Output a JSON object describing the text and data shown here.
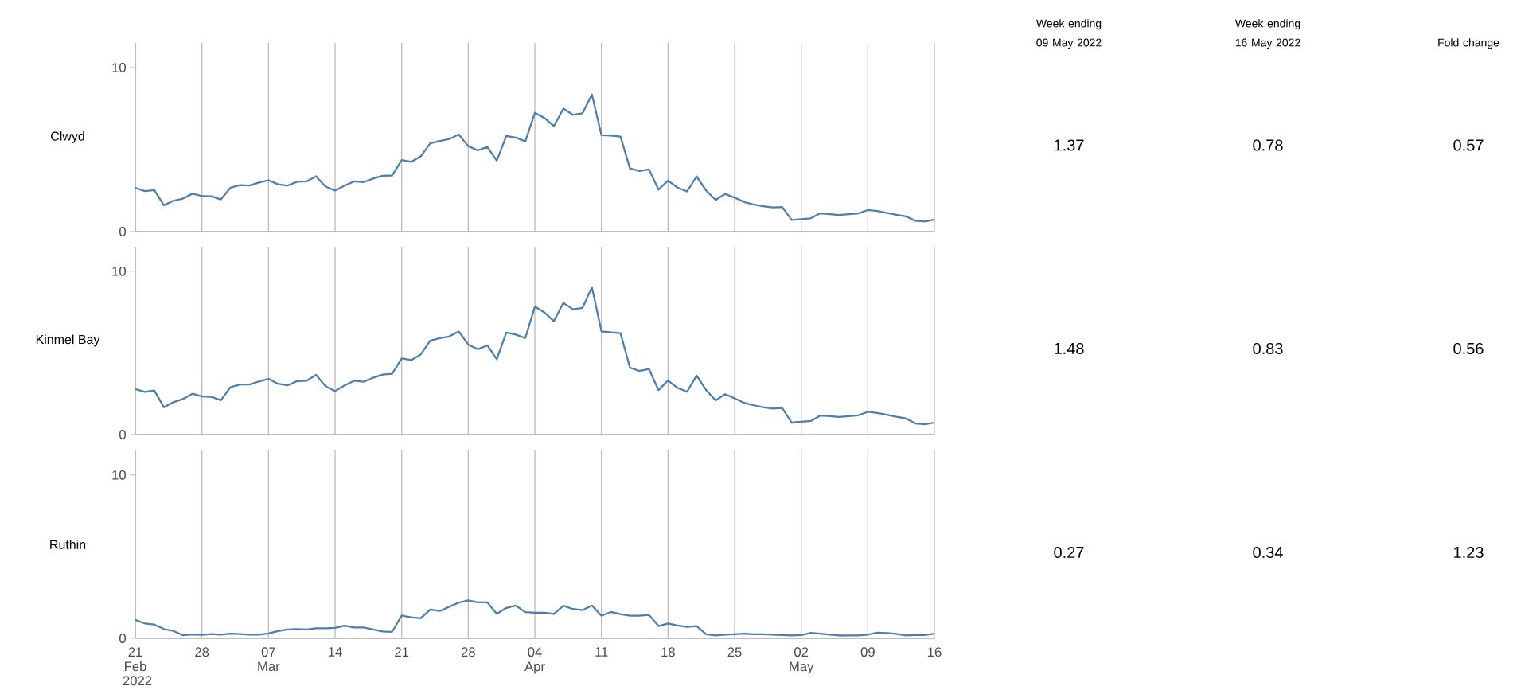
{
  "chart_data": [
    {
      "type": "line",
      "ylabel": "Clwyd",
      "color": "#4e7eab",
      "xlim": [
        "2022-02-21",
        "2022-05-16"
      ],
      "ylim": [
        0,
        11.5
      ],
      "yticks": [
        0,
        10
      ],
      "grid": "x",
      "tick_labels": "y",
      "xticks": [
        {
          "value": "2022-02-21",
          "label": null
        },
        {
          "value": "2022-02-28",
          "label": null
        },
        {
          "value": "2022-03-07",
          "label": null
        },
        {
          "value": "2022-03-14",
          "label": null
        },
        {
          "value": "2022-03-21",
          "label": null
        },
        {
          "value": "2022-03-28",
          "label": null
        },
        {
          "value": "2022-04-04",
          "label": null
        },
        {
          "value": "2022-04-11",
          "label": null
        },
        {
          "value": "2022-04-18",
          "label": null
        },
        {
          "value": "2022-04-25",
          "label": null
        },
        {
          "value": "2022-05-02",
          "label": null
        },
        {
          "value": "2022-05-09",
          "label": null
        },
        {
          "value": "2022-05-16",
          "label": null
        }
      ],
      "x": [
        "2022-02-21",
        "2022-02-22",
        "2022-02-23",
        "2022-02-24",
        "2022-02-25",
        "2022-02-26",
        "2022-02-27",
        "2022-02-28",
        "2022-03-01",
        "2022-03-02",
        "2022-03-03",
        "2022-03-04",
        "2022-03-05",
        "2022-03-06",
        "2022-03-07",
        "2022-03-08",
        "2022-03-09",
        "2022-03-10",
        "2022-03-11",
        "2022-03-12",
        "2022-03-13",
        "2022-03-14",
        "2022-03-15",
        "2022-03-16",
        "2022-03-17",
        "2022-03-18",
        "2022-03-19",
        "2022-03-20",
        "2022-03-21",
        "2022-03-22",
        "2022-03-23",
        "2022-03-24",
        "2022-03-25",
        "2022-03-26",
        "2022-03-27",
        "2022-03-28",
        "2022-03-29",
        "2022-03-30",
        "2022-03-31",
        "2022-04-01",
        "2022-04-02",
        "2022-04-03",
        "2022-04-04",
        "2022-04-05",
        "2022-04-06",
        "2022-04-07",
        "2022-04-08",
        "2022-04-09",
        "2022-04-10",
        "2022-04-11",
        "2022-04-12",
        "2022-04-13",
        "2022-04-14",
        "2022-04-15",
        "2022-04-16",
        "2022-04-17",
        "2022-04-18",
        "2022-04-19",
        "2022-04-20",
        "2022-04-21",
        "2022-04-22",
        "2022-04-23",
        "2022-04-24",
        "2022-04-25",
        "2022-04-26",
        "2022-04-27",
        "2022-04-28",
        "2022-04-29",
        "2022-04-30",
        "2022-05-01",
        "2022-05-02",
        "2022-05-03",
        "2022-05-04",
        "2022-05-05",
        "2022-05-06",
        "2022-05-07",
        "2022-05-08",
        "2022-05-09",
        "2022-05-10",
        "2022-05-11",
        "2022-05-12",
        "2022-05-13",
        "2022-05-14",
        "2022-05-15",
        "2022-05-16"
      ],
      "values": [
        2.66,
        2.47,
        2.53,
        1.6,
        1.88,
        2.01,
        2.31,
        2.17,
        2.15,
        1.96,
        2.67,
        2.83,
        2.81,
        2.99,
        3.13,
        2.88,
        2.8,
        3.04,
        3.06,
        3.37,
        2.74,
        2.5,
        2.8,
        3.06,
        3.02,
        3.23,
        3.4,
        3.42,
        4.36,
        4.25,
        4.58,
        5.38,
        5.52,
        5.64,
        5.92,
        5.21,
        4.95,
        5.16,
        4.32,
        5.83,
        5.73,
        5.5,
        7.24,
        6.93,
        6.43,
        7.5,
        7.12,
        7.21,
        8.36,
        5.88,
        5.85,
        5.79,
        3.85,
        3.69,
        3.79,
        2.56,
        3.11,
        2.68,
        2.45,
        3.36,
        2.51,
        1.93,
        2.3,
        2.07,
        1.8,
        1.65,
        1.54,
        1.47,
        1.5,
        0.71,
        0.76,
        0.81,
        1.11,
        1.06,
        1.01,
        1.06,
        1.11,
        1.31,
        1.26,
        1.14,
        1.02,
        0.93,
        0.66,
        0.61,
        0.73
      ]
    },
    {
      "type": "line",
      "ylabel": "Kinmel Bay",
      "color": "#4e7eab",
      "xlim": [
        "2022-02-21",
        "2022-05-16"
      ],
      "ylim": [
        0,
        11.5
      ],
      "yticks": [
        0,
        10
      ],
      "grid": "x",
      "tick_labels": "y",
      "xticks": [
        {
          "value": "2022-02-21",
          "label": null
        },
        {
          "value": "2022-02-28",
          "label": null
        },
        {
          "value": "2022-03-07",
          "label": null
        },
        {
          "value": "2022-03-14",
          "label": null
        },
        {
          "value": "2022-03-21",
          "label": null
        },
        {
          "value": "2022-03-28",
          "label": null
        },
        {
          "value": "2022-04-04",
          "label": null
        },
        {
          "value": "2022-04-11",
          "label": null
        },
        {
          "value": "2022-04-18",
          "label": null
        },
        {
          "value": "2022-04-25",
          "label": null
        },
        {
          "value": "2022-05-02",
          "label": null
        },
        {
          "value": "2022-05-09",
          "label": null
        },
        {
          "value": "2022-05-16",
          "label": null
        }
      ],
      "x": [
        "2022-02-21",
        "2022-02-22",
        "2022-02-23",
        "2022-02-24",
        "2022-02-25",
        "2022-02-26",
        "2022-02-27",
        "2022-02-28",
        "2022-03-01",
        "2022-03-02",
        "2022-03-03",
        "2022-03-04",
        "2022-03-05",
        "2022-03-06",
        "2022-03-07",
        "2022-03-08",
        "2022-03-09",
        "2022-03-10",
        "2022-03-11",
        "2022-03-12",
        "2022-03-13",
        "2022-03-14",
        "2022-03-15",
        "2022-03-16",
        "2022-03-17",
        "2022-03-18",
        "2022-03-19",
        "2022-03-20",
        "2022-03-21",
        "2022-03-22",
        "2022-03-23",
        "2022-03-24",
        "2022-03-25",
        "2022-03-26",
        "2022-03-27",
        "2022-03-28",
        "2022-03-29",
        "2022-03-30",
        "2022-03-31",
        "2022-04-01",
        "2022-04-02",
        "2022-04-03",
        "2022-04-04",
        "2022-04-05",
        "2022-04-06",
        "2022-04-07",
        "2022-04-08",
        "2022-04-09",
        "2022-04-10",
        "2022-04-11",
        "2022-04-12",
        "2022-04-13",
        "2022-04-14",
        "2022-04-15",
        "2022-04-16",
        "2022-04-17",
        "2022-04-18",
        "2022-04-19",
        "2022-04-20",
        "2022-04-21",
        "2022-04-22",
        "2022-04-23",
        "2022-04-24",
        "2022-04-25",
        "2022-04-26",
        "2022-04-27",
        "2022-04-28",
        "2022-04-29",
        "2022-04-30",
        "2022-05-01",
        "2022-05-02",
        "2022-05-03",
        "2022-05-04",
        "2022-05-05",
        "2022-05-06",
        "2022-05-07",
        "2022-05-08",
        "2022-05-09",
        "2022-05-10",
        "2022-05-11",
        "2022-05-12",
        "2022-05-13",
        "2022-05-14",
        "2022-05-15",
        "2022-05-16"
      ],
      "values": [
        2.78,
        2.61,
        2.7,
        1.67,
        1.98,
        2.17,
        2.5,
        2.33,
        2.31,
        2.1,
        2.9,
        3.06,
        3.06,
        3.25,
        3.41,
        3.11,
        3.01,
        3.27,
        3.29,
        3.65,
        2.96,
        2.66,
        3.01,
        3.29,
        3.23,
        3.48,
        3.67,
        3.72,
        4.66,
        4.56,
        4.9,
        5.74,
        5.9,
        6.0,
        6.31,
        5.51,
        5.22,
        5.46,
        4.61,
        6.24,
        6.12,
        5.91,
        7.83,
        7.48,
        6.94,
        8.06,
        7.67,
        7.75,
        9.02,
        6.32,
        6.26,
        6.21,
        4.09,
        3.89,
        4.01,
        2.72,
        3.31,
        2.86,
        2.62,
        3.61,
        2.73,
        2.09,
        2.47,
        2.22,
        1.94,
        1.79,
        1.67,
        1.59,
        1.62,
        0.73,
        0.78,
        0.83,
        1.16,
        1.13,
        1.08,
        1.13,
        1.18,
        1.39,
        1.32,
        1.21,
        1.09,
        0.99,
        0.68,
        0.63,
        0.73
      ]
    },
    {
      "type": "line",
      "ylabel": "Ruthin",
      "color": "#4e7eab",
      "xlim": [
        "2022-02-21",
        "2022-05-16"
      ],
      "ylim": [
        0,
        11.5
      ],
      "yticks": [
        0,
        10
      ],
      "grid": "x",
      "xticks": [
        {
          "value": "2022-02-21",
          "label": "21 Feb 2022"
        },
        {
          "value": "2022-02-28",
          "label": "28"
        },
        {
          "value": "2022-03-07",
          "label": "07 Mar"
        },
        {
          "value": "2022-03-14",
          "label": "14"
        },
        {
          "value": "2022-03-21",
          "label": "21"
        },
        {
          "value": "2022-03-28",
          "label": "28"
        },
        {
          "value": "2022-04-04",
          "label": "04 Apr"
        },
        {
          "value": "2022-04-11",
          "label": "11"
        },
        {
          "value": "2022-04-18",
          "label": "18"
        },
        {
          "value": "2022-04-25",
          "label": "25"
        },
        {
          "value": "2022-05-02",
          "label": "02 May"
        },
        {
          "value": "2022-05-09",
          "label": "09"
        },
        {
          "value": "2022-05-16",
          "label": "16"
        }
      ],
      "x": [
        "2022-02-21",
        "2022-02-22",
        "2022-02-23",
        "2022-02-24",
        "2022-02-25",
        "2022-02-26",
        "2022-02-27",
        "2022-02-28",
        "2022-03-01",
        "2022-03-02",
        "2022-03-03",
        "2022-03-04",
        "2022-03-05",
        "2022-03-06",
        "2022-03-07",
        "2022-03-08",
        "2022-03-09",
        "2022-03-10",
        "2022-03-11",
        "2022-03-12",
        "2022-03-13",
        "2022-03-14",
        "2022-03-15",
        "2022-03-16",
        "2022-03-17",
        "2022-03-18",
        "2022-03-19",
        "2022-03-20",
        "2022-03-21",
        "2022-03-22",
        "2022-03-23",
        "2022-03-24",
        "2022-03-25",
        "2022-03-26",
        "2022-03-27",
        "2022-03-28",
        "2022-03-29",
        "2022-03-30",
        "2022-03-31",
        "2022-04-01",
        "2022-04-02",
        "2022-04-03",
        "2022-04-04",
        "2022-04-05",
        "2022-04-06",
        "2022-04-07",
        "2022-04-08",
        "2022-04-09",
        "2022-04-10",
        "2022-04-11",
        "2022-04-12",
        "2022-04-13",
        "2022-04-14",
        "2022-04-15",
        "2022-04-16",
        "2022-04-17",
        "2022-04-18",
        "2022-04-19",
        "2022-04-20",
        "2022-04-21",
        "2022-04-22",
        "2022-04-23",
        "2022-04-24",
        "2022-04-25",
        "2022-04-26",
        "2022-04-27",
        "2022-04-28",
        "2022-04-29",
        "2022-04-30",
        "2022-05-01",
        "2022-05-02",
        "2022-05-03",
        "2022-05-04",
        "2022-05-05",
        "2022-05-06",
        "2022-05-07",
        "2022-05-08",
        "2022-05-09",
        "2022-05-10",
        "2022-05-11",
        "2022-05-12",
        "2022-05-13",
        "2022-05-14",
        "2022-05-15",
        "2022-05-16"
      ],
      "values": [
        1.13,
        0.91,
        0.84,
        0.57,
        0.45,
        0.19,
        0.24,
        0.21,
        0.26,
        0.23,
        0.28,
        0.26,
        0.23,
        0.23,
        0.3,
        0.44,
        0.54,
        0.57,
        0.54,
        0.61,
        0.61,
        0.64,
        0.77,
        0.66,
        0.66,
        0.54,
        0.42,
        0.4,
        1.39,
        1.29,
        1.22,
        1.76,
        1.67,
        1.93,
        2.18,
        2.32,
        2.2,
        2.2,
        1.5,
        1.86,
        2.0,
        1.6,
        1.57,
        1.56,
        1.49,
        1.99,
        1.79,
        1.72,
        2.01,
        1.38,
        1.61,
        1.48,
        1.38,
        1.38,
        1.43,
        0.75,
        0.91,
        0.78,
        0.7,
        0.75,
        0.25,
        0.18,
        0.22,
        0.25,
        0.28,
        0.25,
        0.25,
        0.22,
        0.2,
        0.17,
        0.2,
        0.33,
        0.28,
        0.23,
        0.17,
        0.18,
        0.18,
        0.23,
        0.35,
        0.32,
        0.27,
        0.18,
        0.2,
        0.2,
        0.28
      ]
    },
    {
      "type": "other",
      "categories": [
        "Week ending 09 May 2022",
        "Week ending 16 May 2022",
        "Fold change"
      ],
      "annotations": [
        "1.37",
        "0.78",
        "0.57",
        "1.48",
        "0.83",
        "0.56",
        "0.27",
        "0.34",
        "1.23"
      ]
    }
  ]
}
